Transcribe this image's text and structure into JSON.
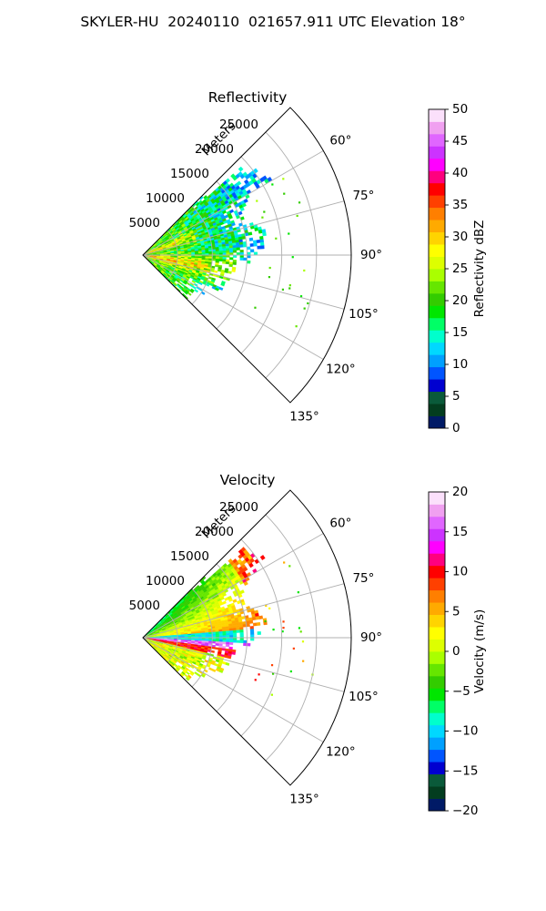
{
  "suptitle": "SKYLER-HU  20240110  021657.911 UTC Elevation 18°",
  "chart_data": [
    {
      "type": "heatmap",
      "subtype": "polar-sector",
      "title": "Reflectivity",
      "range_label": "Meters",
      "range_ticks": [
        5000,
        10000,
        15000,
        20000,
        25000
      ],
      "range_tick_labels": [
        "5000",
        "10000",
        "15000",
        "20000",
        "25000"
      ],
      "range_max": 30000,
      "azimuth_range": [
        45,
        135
      ],
      "azimuth_ticks": [
        60,
        75,
        90,
        105,
        120,
        135
      ],
      "azimuth_tick_labels": [
        "60°",
        "75°",
        "90°",
        "105°",
        "120°",
        "135°"
      ],
      "grid": true,
      "colorbar": {
        "label": "Reflectivity dBZ",
        "range": [
          0,
          50
        ],
        "ticks": [
          0,
          5,
          10,
          15,
          20,
          25,
          30,
          35,
          40,
          45,
          50
        ],
        "tick_labels": [
          "0",
          "5",
          "10",
          "15",
          "20",
          "25",
          "30",
          "35",
          "40",
          "45",
          "50"
        ],
        "colors": [
          "#001a66",
          "#033d1f",
          "#0a5a3a",
          "#0000d0",
          "#0055ff",
          "#00a0ff",
          "#00d8ff",
          "#00ffcc",
          "#00ff66",
          "#00e600",
          "#33cc00",
          "#66e600",
          "#aaff00",
          "#ddff00",
          "#ffff00",
          "#ffd400",
          "#ffaa00",
          "#ff7f00",
          "#ff4000",
          "#ff0000",
          "#ff007f",
          "#ff00ff",
          "#cc33ff",
          "#e066ff",
          "#f0a0f0",
          "#fbe0fb"
        ]
      }
    },
    {
      "type": "heatmap",
      "subtype": "polar-sector",
      "title": "Velocity",
      "range_label": "Meters",
      "range_ticks": [
        5000,
        10000,
        15000,
        20000,
        25000
      ],
      "range_tick_labels": [
        "5000",
        "10000",
        "15000",
        "20000",
        "25000"
      ],
      "range_max": 30000,
      "azimuth_range": [
        45,
        135
      ],
      "azimuth_ticks": [
        60,
        75,
        90,
        105,
        120,
        135
      ],
      "azimuth_tick_labels": [
        "60°",
        "75°",
        "90°",
        "105°",
        "120°",
        "135°"
      ],
      "grid": true,
      "colorbar": {
        "label": "Velocity (m/s)",
        "range": [
          -20,
          20
        ],
        "ticks": [
          -20,
          -15,
          -10,
          -5,
          0,
          5,
          10,
          15,
          20
        ],
        "tick_labels": [
          "−20",
          "−15",
          "−10",
          "−5",
          "0",
          "5",
          "10",
          "15",
          "20"
        ],
        "colors": [
          "#001a66",
          "#033d1f",
          "#0a5a3a",
          "#0000d0",
          "#0055ff",
          "#00a0ff",
          "#00d8ff",
          "#00ffcc",
          "#00ff66",
          "#00e600",
          "#33cc00",
          "#66e600",
          "#aaff00",
          "#ddff00",
          "#ffff00",
          "#ffd400",
          "#ffaa00",
          "#ff7f00",
          "#ff4000",
          "#ff0000",
          "#ff007f",
          "#ff00ff",
          "#cc33ff",
          "#e066ff",
          "#f0a0f0",
          "#fbe0fb"
        ]
      }
    }
  ]
}
